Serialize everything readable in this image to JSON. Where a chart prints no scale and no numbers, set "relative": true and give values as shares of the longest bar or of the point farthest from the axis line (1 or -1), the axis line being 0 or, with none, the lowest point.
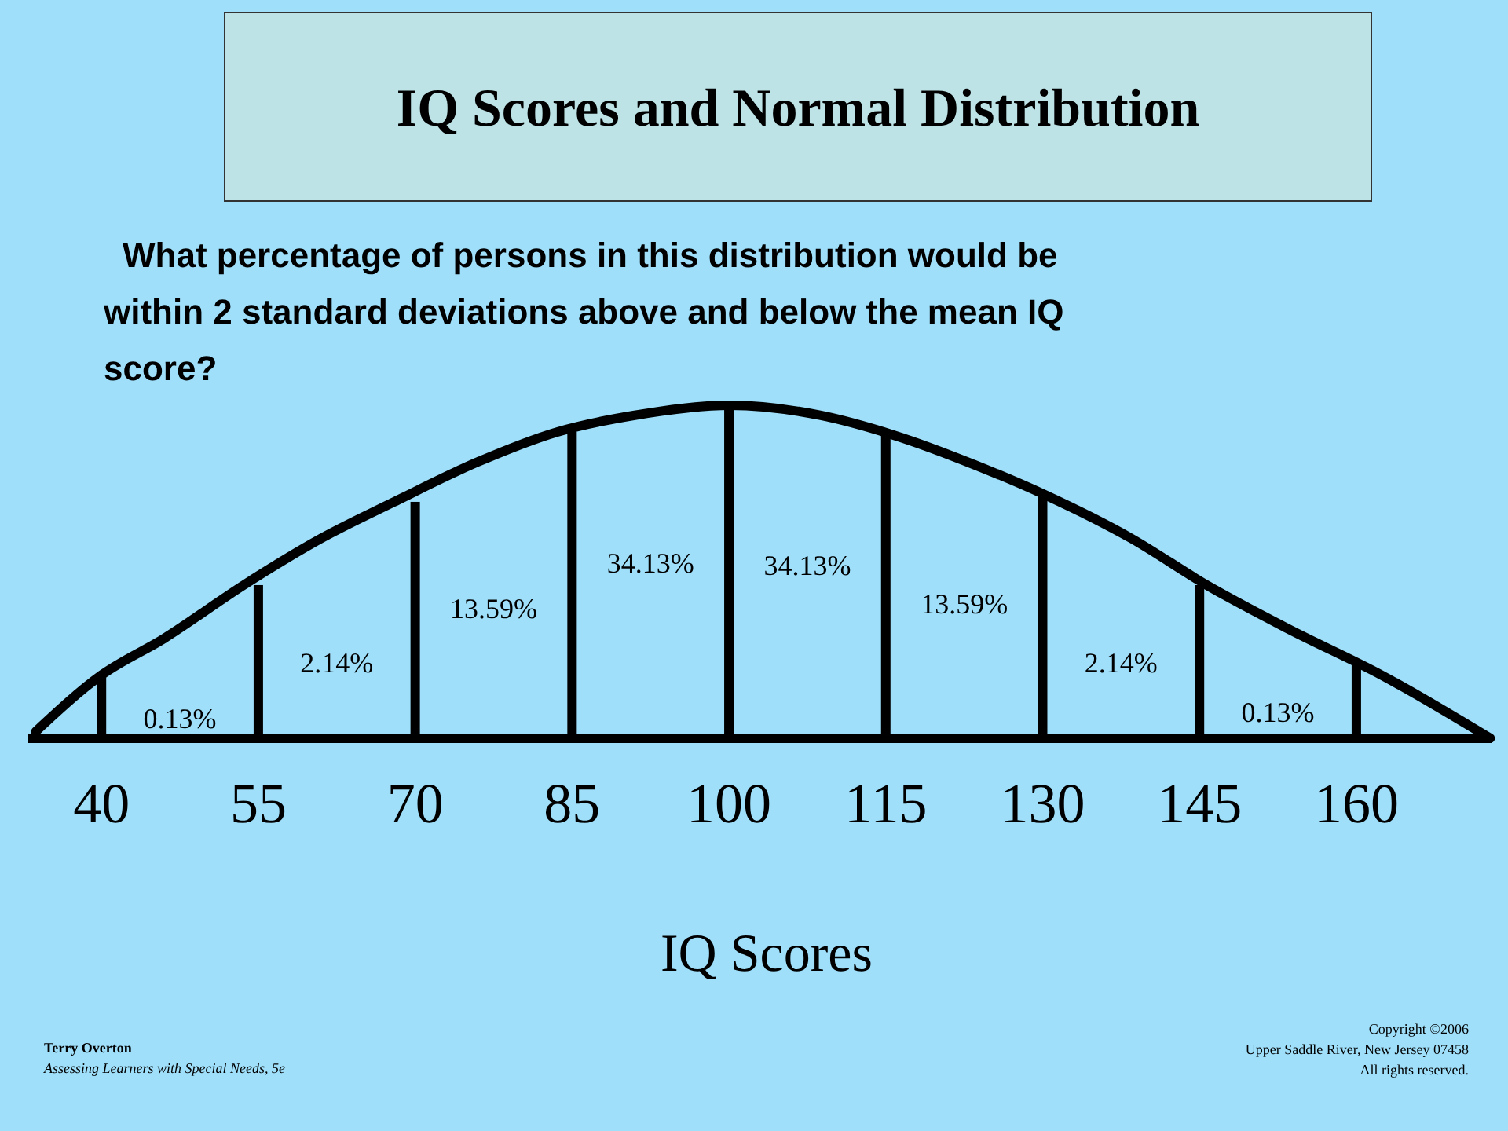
{
  "chart_data": {
    "type": "line",
    "relative": true,
    "title": "IQ Scores and Normal Distribution",
    "subtitle": "What percentage of persons in this distribution would be within 2 standard deviations above and below the mean IQ score?",
    "xlabel": "IQ Scores",
    "xlim": [
      33,
      173
    ],
    "xticks": [
      40,
      55,
      70,
      85,
      100,
      115,
      130,
      145,
      160
    ],
    "series": [
      {
        "type": "bar",
        "color": "#000000",
        "x": [
          40,
          55,
          70,
          85,
          100,
          115,
          130,
          145,
          160
        ],
        "values": [
          0.19,
          0.46,
          0.71,
          0.92,
          1.0,
          0.91,
          0.73,
          0.46,
          0.23
        ]
      },
      {
        "color": "#000000",
        "x": [
          33.7,
          40,
          46,
          53.6,
          61,
          68,
          76,
          83.6,
          91,
          100.1,
          108.7,
          115.8,
          123.6,
          130.3,
          138.5,
          145.7,
          153.4,
          162.4,
          172.8
        ],
        "values": [
          0.02,
          0.19,
          0.3,
          0.46,
          0.6,
          0.71,
          0.83,
          0.92,
          0.97,
          1.0,
          0.97,
          0.91,
          0.82,
          0.73,
          0.6,
          0.46,
          0.33,
          0.19,
          0.0
        ]
      }
    ],
    "annotations": [
      "0.13%",
      "2.14%",
      "13.59%",
      "34.13%",
      "34.13%",
      "13.59%",
      "2.14%",
      "0.13%",
      "Terry Overton",
      "Assessing Learners with Special Needs, 5e",
      "Copyright ©2006",
      "Upper Saddle River, New Jersey 07458",
      "All rights reserved."
    ]
  }
}
